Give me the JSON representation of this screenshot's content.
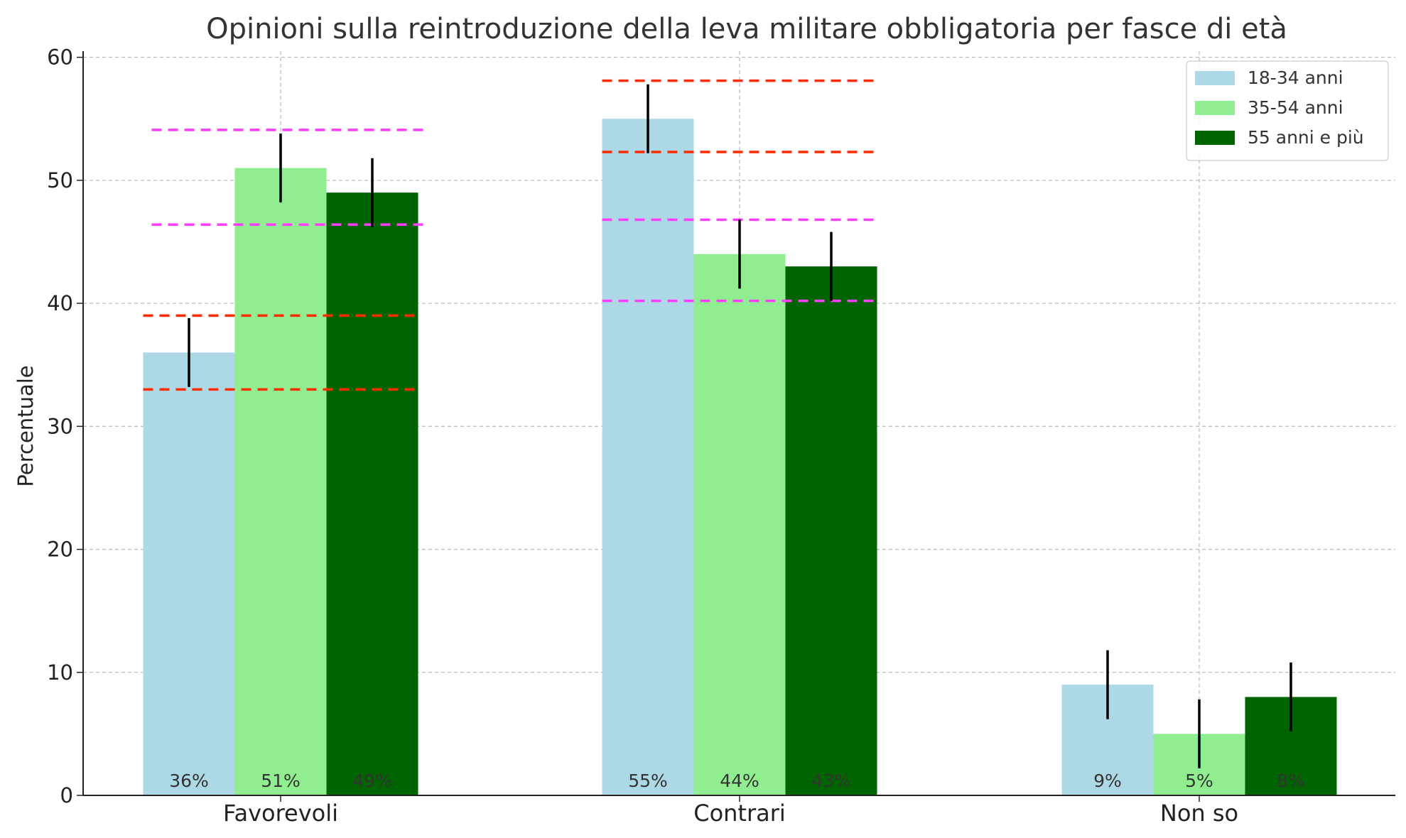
{
  "chart_data": {
    "type": "bar",
    "title": "Opinioni sulla reintroduzione della leva militare obbligatoria per fasce di età",
    "xlabel": "",
    "ylabel": "Percentuale",
    "ylim": [
      0,
      60.5
    ],
    "yticks": [
      0,
      10,
      20,
      30,
      40,
      50,
      60
    ],
    "grid": true,
    "legend_position": "top-right",
    "categories": [
      "Favorevoli",
      "Contrari",
      "Non so"
    ],
    "series": [
      {
        "name": "18-34 anni",
        "color": "#add8e6",
        "values": [
          36,
          55,
          9
        ],
        "labels": [
          "36%",
          "55%",
          "9%"
        ],
        "error": [
          2.8,
          2.8,
          2.8
        ]
      },
      {
        "name": "35-54 anni",
        "color": "#90ee90",
        "values": [
          51,
          44,
          5
        ],
        "labels": [
          "51%",
          "44%",
          "5%"
        ],
        "error": [
          2.8,
          2.8,
          2.8
        ]
      },
      {
        "name": "55 anni e più",
        "color": "#006400",
        "values": [
          49,
          43,
          8
        ],
        "labels": [
          "49%",
          "43%",
          "8%"
        ],
        "error": [
          2.8,
          2.8,
          2.8
        ]
      }
    ],
    "reference_lines": [
      {
        "category": "Favorevoli",
        "values": [
          39,
          33
        ],
        "color": "#ff2a00",
        "span": "narrow"
      },
      {
        "category": "Favorevoli",
        "values": [
          54.1,
          46.4
        ],
        "color": "#ff3cff",
        "span": "wide"
      },
      {
        "category": "Contrari",
        "values": [
          58.1,
          52.3
        ],
        "color": "#ff2a00",
        "span": "full"
      },
      {
        "category": "Contrari",
        "values": [
          46.8,
          40.2
        ],
        "color": "#ff3cff",
        "span": "full"
      }
    ]
  }
}
